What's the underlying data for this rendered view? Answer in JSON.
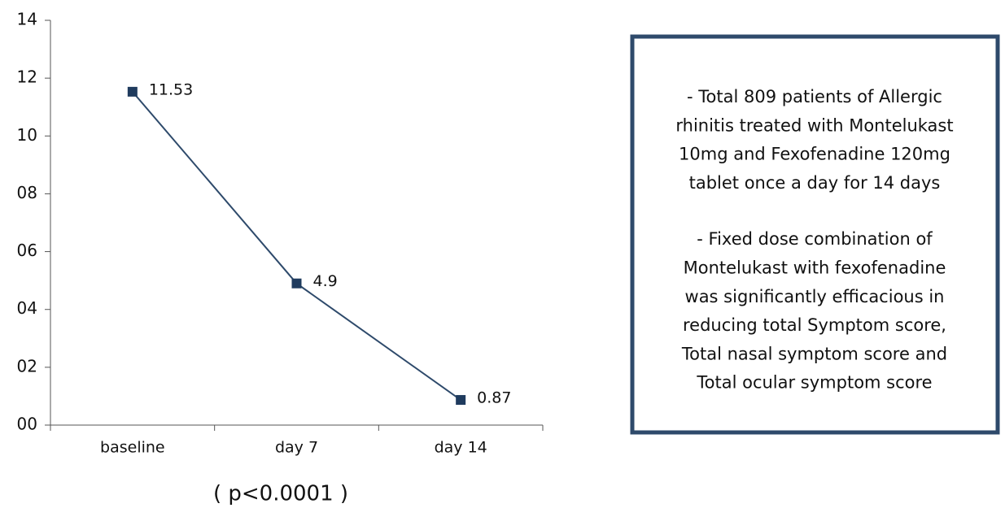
{
  "chart_data": {
    "type": "line",
    "categories": [
      "baseline",
      "day 7",
      "day 14"
    ],
    "series": [
      {
        "name": null,
        "color": "#2e4a6b",
        "values": [
          11.53,
          4.9,
          0.87
        ]
      }
    ],
    "ylim": [
      0,
      14
    ],
    "yticks": [
      {
        "value": 0,
        "label": "00"
      },
      {
        "value": 2,
        "label": "02"
      },
      {
        "value": 4,
        "label": "04"
      },
      {
        "value": 6,
        "label": "06"
      },
      {
        "value": 8,
        "label": "08"
      },
      10,
      12,
      14
    ],
    "annotation": "( p<0.0001 )",
    "text_box": {
      "paragraphs": [
        [
          "- Total 809 patients of Allergic",
          "rhinitis treated with Montelukast",
          "10mg and Fexofenadine 120mg",
          "tablet once a day for 14 days"
        ],
        [
          "- Fixed dose combination of",
          "Montelukast with fexofenadine",
          "was significantly efficacious in",
          "reducing total Symptom score,",
          "Total nasal symptom score and",
          "Total ocular symptom score"
        ]
      ]
    }
  }
}
